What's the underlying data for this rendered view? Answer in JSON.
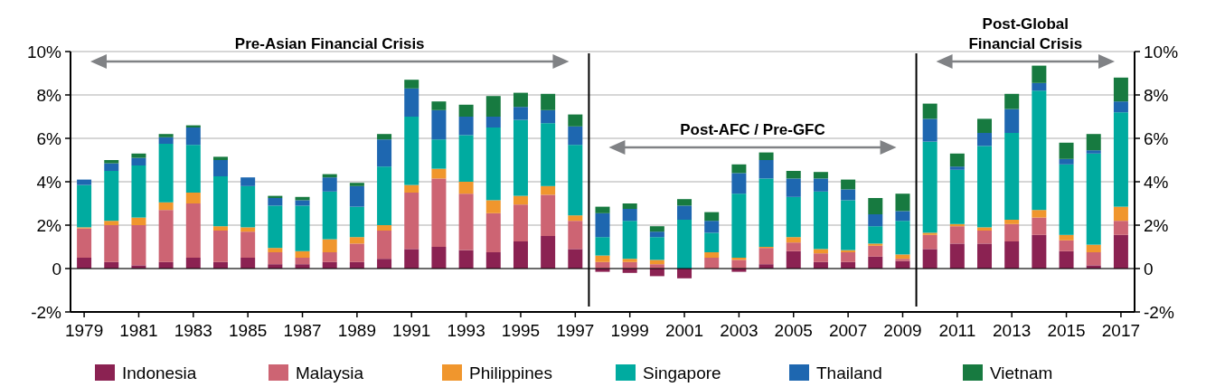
{
  "chart_data": {
    "type": "bar",
    "stacked": true,
    "x": [
      1979,
      1980,
      1981,
      1982,
      1983,
      1984,
      1985,
      1986,
      1987,
      1988,
      1989,
      1990,
      1991,
      1992,
      1993,
      1994,
      1995,
      1996,
      1997,
      1998,
      1999,
      2000,
      2001,
      2002,
      2003,
      2004,
      2005,
      2006,
      2007,
      2008,
      2009,
      2010,
      2011,
      2012,
      2013,
      2014,
      2015,
      2016,
      2017
    ],
    "xlim": [
      1978.5,
      2017.5
    ],
    "xticks": [
      1979,
      1981,
      1983,
      1985,
      1987,
      1989,
      1991,
      1993,
      1995,
      1997,
      1999,
      2001,
      2003,
      2005,
      2007,
      2009,
      2011,
      2013,
      2015,
      2017
    ],
    "ylim": [
      -2,
      10
    ],
    "yticks": [
      {
        "value": -2,
        "label": "-2%"
      },
      0,
      {
        "value": 2,
        "label": "2%"
      },
      {
        "value": 4,
        "label": "4%"
      },
      {
        "value": 6,
        "label": "6%"
      },
      {
        "value": 8,
        "label": "8%"
      },
      {
        "value": 10,
        "label": "10%"
      }
    ],
    "y2lim": [
      -2,
      10
    ],
    "y2ticks": [
      {
        "value": -2,
        "label": "-2%"
      },
      0,
      {
        "value": 2,
        "label": "2%"
      },
      {
        "value": 4,
        "label": "4%"
      },
      {
        "value": 6,
        "label": "6%"
      },
      {
        "value": 8,
        "label": "8%"
      },
      {
        "value": 10,
        "label": "10%"
      }
    ],
    "grid": "y",
    "legend": "bottom",
    "series": [
      {
        "name": "Indonesia",
        "color": "#8b2252",
        "values": [
          0.5,
          0.3,
          0.15,
          0.3,
          0.5,
          0.3,
          0.5,
          0.2,
          0.2,
          0.3,
          0.3,
          0.45,
          0.9,
          1.0,
          0.85,
          0.75,
          1.25,
          1.5,
          0.9,
          -0.15,
          -0.2,
          -0.35,
          -0.45,
          0,
          -0.15,
          0.2,
          0.8,
          0.3,
          0.3,
          0.55,
          0.35,
          0.9,
          1.15,
          1.15,
          1.25,
          1.55,
          0.8,
          0.15,
          1.55
        ]
      },
      {
        "name": "Malaysia",
        "color": "#cd6473",
        "values": [
          1.35,
          1.7,
          1.85,
          2.4,
          2.5,
          1.45,
          1.2,
          0.55,
          0.3,
          0.45,
          0.85,
          1.3,
          2.6,
          3.15,
          2.6,
          1.8,
          1.7,
          1.9,
          1.3,
          0.3,
          0.3,
          0.2,
          0,
          0.5,
          0.4,
          0.75,
          0.4,
          0.4,
          0.45,
          0.5,
          0.1,
          0.65,
          0.8,
          0.6,
          0.8,
          0.8,
          0.5,
          0.6,
          0.65
        ]
      },
      {
        "name": "Philippines",
        "color": "#f0962d",
        "values": [
          0.05,
          0.2,
          0.35,
          0.35,
          0.5,
          0.2,
          0.2,
          0.2,
          0.3,
          0.6,
          0.3,
          0.25,
          0.35,
          0.45,
          0.55,
          0.6,
          0.4,
          0.4,
          0.25,
          0.3,
          0.15,
          0.2,
          0,
          0.25,
          0.1,
          0.05,
          0.25,
          0.2,
          0.1,
          0.1,
          0.2,
          0.1,
          0.1,
          0.15,
          0.2,
          0.35,
          0.25,
          0.35,
          0.65
        ]
      },
      {
        "name": "Singapore",
        "color": "#00aba0",
        "values": [
          1.95,
          2.3,
          2.4,
          2.7,
          2.2,
          2.3,
          1.9,
          1.95,
          2.1,
          2.2,
          1.4,
          2.7,
          3.15,
          1.35,
          2.15,
          3.35,
          3.5,
          2.9,
          3.25,
          0.85,
          1.75,
          1.05,
          2.25,
          0.9,
          2.95,
          3.15,
          1.85,
          2.65,
          2.3,
          0.8,
          1.55,
          4.2,
          2.5,
          3.75,
          4.0,
          5.5,
          3.25,
          4.2,
          4.35
        ]
      },
      {
        "name": "Thailand",
        "color": "#1e67b0",
        "values": [
          0.25,
          0.35,
          0.35,
          0.3,
          0.8,
          0.75,
          0.4,
          0.35,
          0.25,
          0.65,
          0.95,
          1.25,
          1.3,
          1.35,
          0.85,
          0.5,
          0.6,
          0.6,
          0.85,
          1.1,
          0.55,
          0.25,
          0.65,
          0.55,
          0.95,
          0.85,
          0.85,
          0.6,
          0.5,
          0.55,
          0.45,
          1.05,
          0.15,
          0.6,
          1.1,
          0.35,
          0.25,
          0.15,
          0.5
        ]
      },
      {
        "name": "Vietnam",
        "color": "#177a40",
        "values": [
          0,
          0.15,
          0.2,
          0.15,
          0.1,
          0.15,
          0,
          0.1,
          0.15,
          0.15,
          0.15,
          0.25,
          0.4,
          0.4,
          0.55,
          0.95,
          0.65,
          0.75,
          0.55,
          0.3,
          0.25,
          0.25,
          0.3,
          0.4,
          0.4,
          0.35,
          0.35,
          0.3,
          0.45,
          0.75,
          0.8,
          0.7,
          0.6,
          0.65,
          0.7,
          0.8,
          0.75,
          0.75,
          1.1
        ]
      }
    ],
    "ref_lines": [
      {
        "axis": "x",
        "value": 1997.5,
        "color": "#000000"
      },
      {
        "axis": "x",
        "value": 2009.5,
        "color": "#000000"
      }
    ],
    "annotations": [
      "Pre-Asian Financial Crisis",
      "Post-AFC / Pre-GFC",
      "Post-Global Financial Crisis"
    ]
  }
}
